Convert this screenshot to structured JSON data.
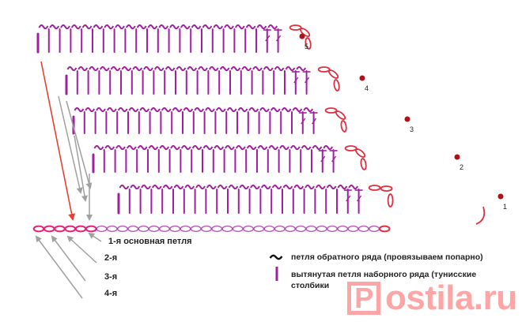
{
  "diagram": {
    "rows": [
      {
        "number": "1",
        "tildes": 22,
        "sticks": 23
      },
      {
        "number": "2",
        "tildes": 22,
        "sticks": 23
      },
      {
        "number": "3",
        "tildes": 22,
        "sticks": 23
      },
      {
        "number": "4",
        "tildes": 22,
        "sticks": 23
      },
      {
        "number": "5",
        "tildes": 22,
        "sticks": 23
      }
    ],
    "foundation_chain_count": 34,
    "colors": {
      "stitch": "#a020a0",
      "chain": "#e03040",
      "highlight": "#e8207a",
      "arrow_gray": "#a0a0a0",
      "arrow_red": "#e84030",
      "dot": "#b01018"
    }
  },
  "labels": {
    "loop1": "1-я основная петля",
    "loop2": "2-я",
    "loop3": "3-я",
    "loop4": "4-я"
  },
  "legend": {
    "tilde_text": "петля обратного ряда (провязываем попарно)",
    "stick_text": "вытянутая петля наборного ряда (тунисские столбики"
  },
  "watermark": {
    "box_letter": "P",
    "text": "ostila.ru"
  }
}
